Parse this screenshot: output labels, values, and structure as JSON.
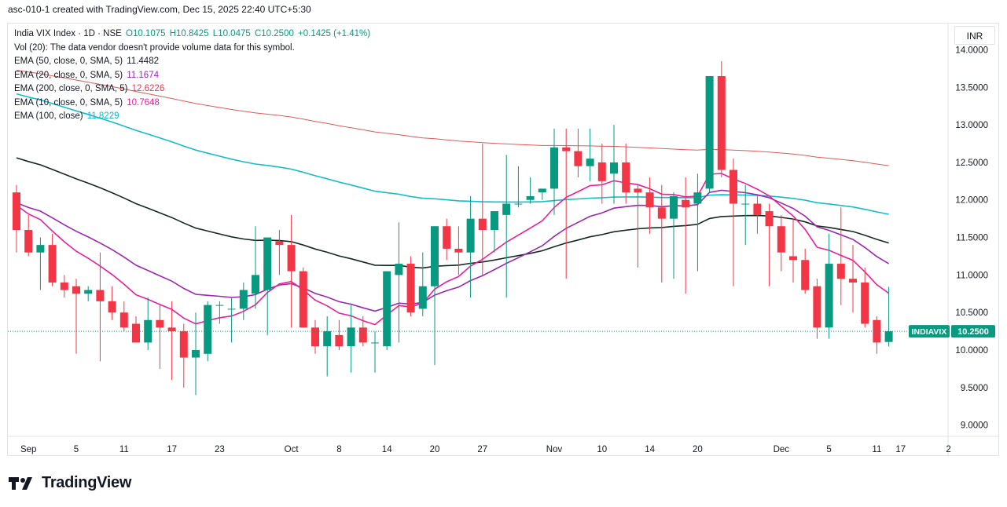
{
  "header": {
    "caption": "asc-010-1 created with TradingView.com, Dec 15, 2025 22:40 UTC+5:30"
  },
  "legend": {
    "symbol": "India VIX Index · 1D · NSE",
    "ohlc": {
      "o": "O10.1075",
      "h": "H10.8425",
      "l": "L10.0475",
      "c": "C10.2500",
      "change": "+0.1425 (+1.41%)"
    },
    "volume_note": "Vol (20): The data vendor doesn't provide volume data for this symbol.",
    "indicators": [
      {
        "label": "EMA (50, close, 0, SMA, 5)",
        "value": "11.4482",
        "color": "#131722"
      },
      {
        "label": "EMA (20, close, 0, SMA, 5)",
        "value": "11.1674",
        "color": "#9c27b0"
      },
      {
        "label": "EMA (200, close, 0, SMA, 5)",
        "value": "12.6226",
        "color": "#f23645"
      },
      {
        "label": "EMA (10, close, 0, SMA, 5)",
        "value": "10.7648",
        "color": "#e91e9c"
      },
      {
        "label": "EMA (100, close)",
        "value": "11.8229",
        "color": "#00bcd4"
      }
    ]
  },
  "currency": "INR",
  "price_tag": {
    "symbol": "INDIAVIX",
    "value": "10.2500",
    "color": "#089981"
  },
  "brand": "TradingView",
  "colors": {
    "up": "#089981",
    "down": "#f23645",
    "ema10": "#e91e9c",
    "ema20": "#9c27b0",
    "ema50": "#132a22",
    "ema100": "#16bccb",
    "ema200": "#e05a5a"
  },
  "chart_data": {
    "type": "candlestick",
    "y_range": [
      8.85,
      14.35
    ],
    "y_ticks": [
      "9.0000",
      "9.5000",
      "10.0000",
      "10.5000",
      "11.0000",
      "11.5000",
      "12.0000",
      "12.5000",
      "13.0000",
      "13.5000",
      "14.0000"
    ],
    "x_labels": [
      "Sep",
      "5",
      "11",
      "17",
      "23",
      "Oct",
      "8",
      "14",
      "20",
      "27",
      "Nov",
      "10",
      "14",
      "20",
      "Dec",
      "5",
      "11",
      "17",
      "2"
    ],
    "x_label_bar_index": [
      1,
      5,
      9,
      13,
      17,
      23,
      27,
      31,
      35,
      39,
      45,
      49,
      53,
      57,
      64,
      68,
      72,
      74,
      78
    ],
    "candles": [
      [
        12.1,
        12.2,
        11.3,
        11.6
      ],
      [
        11.6,
        11.8,
        11.25,
        11.3
      ],
      [
        11.3,
        11.5,
        10.8,
        11.4
      ],
      [
        11.4,
        11.55,
        10.85,
        10.9
      ],
      [
        10.9,
        11.0,
        10.7,
        10.8
      ],
      [
        10.85,
        10.95,
        9.95,
        10.75
      ],
      [
        10.75,
        10.85,
        10.65,
        10.8
      ],
      [
        10.8,
        11.3,
        9.85,
        10.65
      ],
      [
        10.65,
        10.85,
        10.4,
        10.5
      ],
      [
        10.5,
        10.65,
        10.25,
        10.3
      ],
      [
        10.35,
        10.45,
        10.1,
        10.1
      ],
      [
        10.1,
        10.7,
        10.0,
        10.4
      ],
      [
        10.4,
        10.6,
        9.75,
        10.3
      ],
      [
        10.3,
        10.65,
        9.6,
        10.25
      ],
      [
        10.25,
        10.35,
        9.5,
        9.9
      ],
      [
        9.9,
        10.5,
        9.4,
        10.0
      ],
      [
        9.95,
        10.65,
        9.85,
        10.6
      ],
      [
        10.6,
        10.65,
        10.35,
        10.6
      ],
      [
        10.55,
        10.7,
        10.1,
        10.55
      ],
      [
        10.55,
        10.9,
        10.4,
        10.8
      ],
      [
        10.75,
        11.65,
        10.55,
        11.0
      ],
      [
        10.8,
        11.45,
        10.2,
        11.5
      ],
      [
        11.45,
        11.6,
        11.0,
        11.4
      ],
      [
        11.4,
        11.8,
        10.3,
        11.05
      ],
      [
        11.05,
        11.1,
        10.3,
        10.3
      ],
      [
        10.3,
        10.4,
        9.95,
        10.05
      ],
      [
        10.05,
        10.45,
        9.65,
        10.25
      ],
      [
        10.2,
        10.4,
        10.0,
        10.05
      ],
      [
        10.05,
        10.6,
        9.7,
        10.3
      ],
      [
        10.3,
        10.45,
        10.05,
        10.1
      ],
      [
        10.1,
        10.25,
        9.7,
        10.1
      ],
      [
        10.05,
        11.05,
        10.0,
        11.05
      ],
      [
        11.0,
        11.7,
        10.1,
        11.15
      ],
      [
        11.15,
        11.25,
        10.45,
        10.5
      ],
      [
        10.55,
        11.3,
        10.45,
        10.85
      ],
      [
        10.85,
        11.65,
        9.8,
        11.65
      ],
      [
        11.65,
        11.75,
        11.2,
        11.35
      ],
      [
        11.35,
        11.65,
        11.0,
        11.3
      ],
      [
        11.3,
        12.05,
        10.7,
        11.75
      ],
      [
        11.75,
        12.75,
        11.0,
        11.6
      ],
      [
        11.6,
        11.85,
        11.3,
        11.85
      ],
      [
        11.8,
        12.6,
        10.7,
        11.95
      ],
      [
        11.95,
        12.45,
        11.9,
        11.95
      ],
      [
        12.0,
        12.3,
        11.95,
        12.05
      ],
      [
        12.1,
        12.15,
        12.0,
        12.15
      ],
      [
        12.15,
        12.95,
        11.8,
        12.7
      ],
      [
        12.7,
        12.95,
        10.95,
        12.65
      ],
      [
        12.65,
        12.95,
        12.3,
        12.45
      ],
      [
        12.45,
        12.95,
        12.25,
        12.55
      ],
      [
        12.5,
        12.75,
        11.95,
        12.25
      ],
      [
        12.35,
        13.0,
        11.95,
        12.5
      ],
      [
        12.5,
        12.75,
        11.95,
        12.1
      ],
      [
        12.15,
        12.2,
        11.1,
        12.1
      ],
      [
        12.1,
        12.3,
        11.55,
        11.9
      ],
      [
        11.9,
        12.2,
        10.9,
        11.75
      ],
      [
        11.75,
        12.1,
        10.95,
        12.05
      ],
      [
        12.0,
        12.3,
        10.75,
        11.9
      ],
      [
        11.95,
        12.35,
        11.05,
        12.1
      ],
      [
        12.15,
        13.65,
        12.1,
        13.65
      ],
      [
        13.65,
        13.85,
        12.3,
        12.4
      ],
      [
        12.4,
        12.55,
        10.85,
        11.95
      ],
      [
        11.95,
        12.2,
        11.4,
        11.95
      ],
      [
        11.95,
        12.05,
        11.55,
        11.8
      ],
      [
        11.85,
        11.95,
        10.85,
        11.65
      ],
      [
        11.65,
        11.8,
        11.05,
        11.3
      ],
      [
        11.25,
        11.75,
        10.9,
        11.2
      ],
      [
        11.2,
        11.35,
        10.75,
        10.8
      ],
      [
        10.85,
        10.95,
        10.15,
        10.3
      ],
      [
        10.3,
        11.55,
        10.15,
        11.15
      ],
      [
        11.15,
        11.9,
        10.6,
        10.95
      ],
      [
        10.95,
        11.4,
        10.5,
        10.9
      ],
      [
        10.9,
        11.1,
        10.3,
        10.35
      ],
      [
        10.4,
        10.45,
        9.95,
        10.1
      ],
      [
        10.1075,
        10.8425,
        10.0475,
        10.25
      ]
    ]
  }
}
